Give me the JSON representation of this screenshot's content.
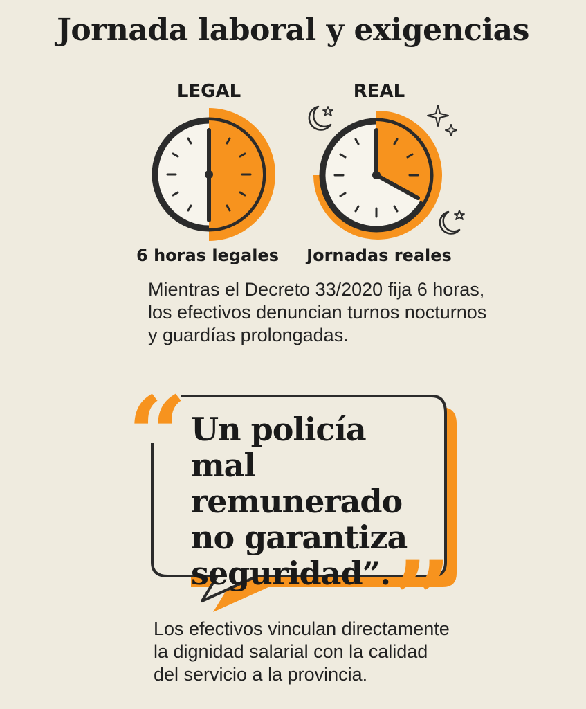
{
  "title": "Jornada laboral y exigencias",
  "legal": {
    "label": "LEGAL",
    "caption": "6 horas legales",
    "hours_highlighted": 6
  },
  "real": {
    "label": "REAL",
    "caption": "Jornadas reales"
  },
  "description": "Mientras el Decreto 33/2020 fija 6 horas,\nlos efectivos denuncian turnos nocturnos\ny guardías prolongadas.",
  "quote": {
    "text": "Un policía mal\nremunerado\nno garantiza\nseguridad”.",
    "open_mark": "“",
    "close_mark": "”"
  },
  "footer_text": "Los efectivos vinculan directamente\nla dignidad salarial con la calidad\ndel servicio a la provincia.",
  "colors": {
    "background": "#efebdf",
    "accent": "#f7931e",
    "ink": "#1c1c1c"
  },
  "icons": [
    "clock-icon",
    "moon-icon",
    "star-icon"
  ]
}
